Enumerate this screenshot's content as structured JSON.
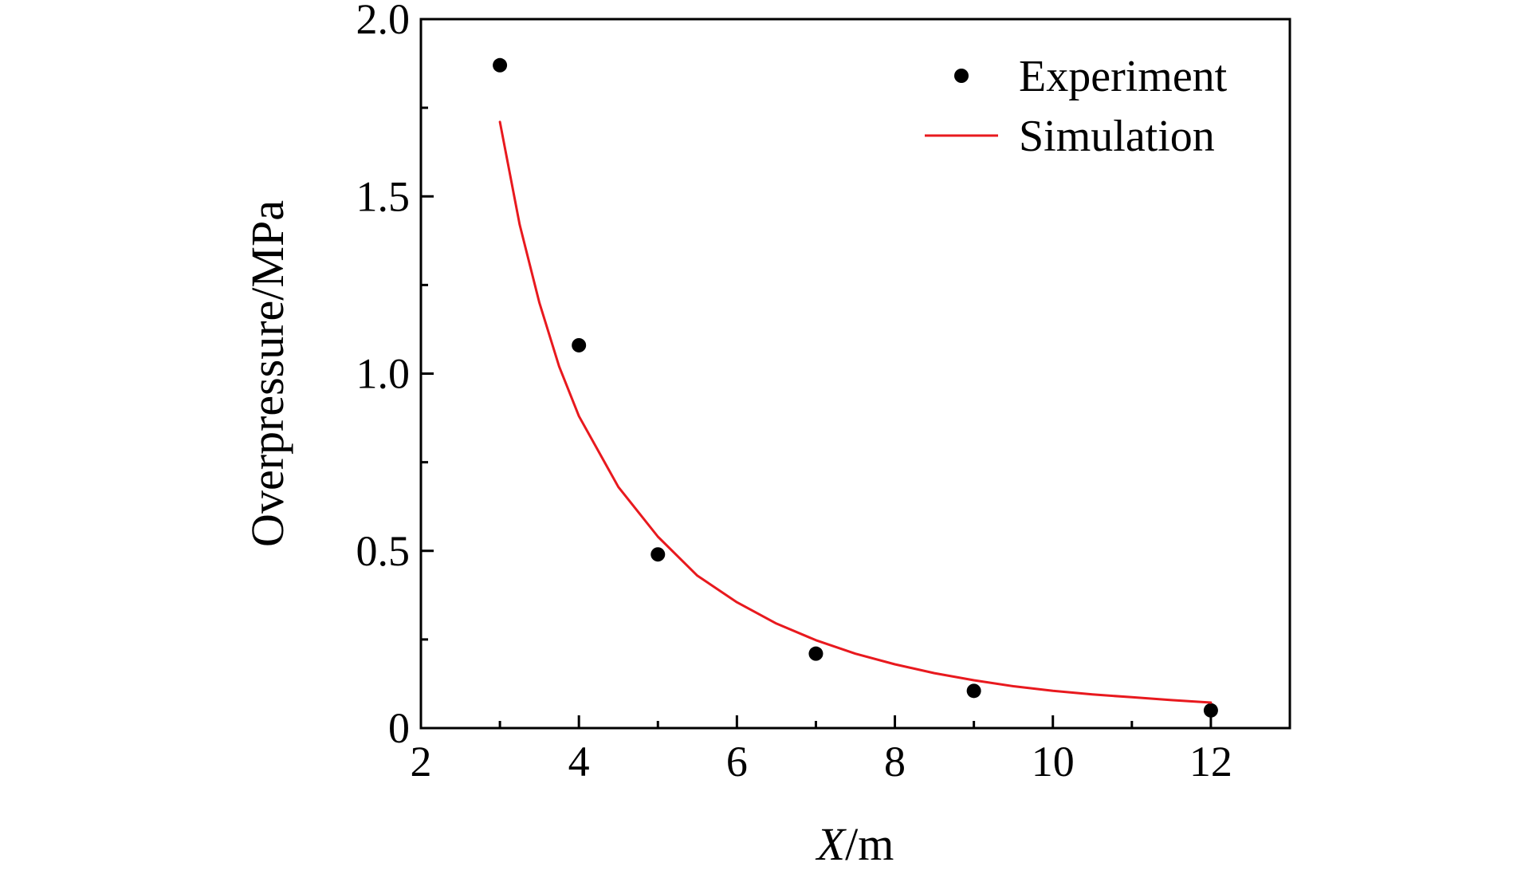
{
  "chart_data": {
    "type": "scatter",
    "title": "",
    "xlabel_italic": "X",
    "xlabel_unit": "/m",
    "ylabel": "Overpressure/MPa",
    "xlim": [
      2,
      13
    ],
    "ylim": [
      0,
      2.0
    ],
    "x_ticks": [
      2,
      4,
      6,
      8,
      10,
      12
    ],
    "x_tick_labels": [
      "2",
      "4",
      "6",
      "8",
      "10",
      "12"
    ],
    "y_ticks": [
      0,
      0.5,
      1.0,
      1.5,
      2.0
    ],
    "y_tick_labels": [
      "0",
      "0.5",
      "1.0",
      "1.5",
      "2.0"
    ],
    "legend_position": "top-right",
    "series": [
      {
        "name": "Experiment",
        "kind": "scatter",
        "color": "#000000",
        "x": [
          3,
          4,
          5,
          7,
          9,
          12
        ],
        "y": [
          1.87,
          1.08,
          0.49,
          0.21,
          0.105,
          0.05
        ]
      },
      {
        "name": "Simulation",
        "kind": "line",
        "color": "#e8191e",
        "x": [
          3,
          3.25,
          3.5,
          3.75,
          4,
          4.5,
          5,
          5.5,
          6,
          6.5,
          7,
          7.5,
          8,
          8.5,
          9,
          9.5,
          10,
          10.5,
          11,
          11.5,
          12
        ],
        "y": [
          1.71,
          1.42,
          1.2,
          1.02,
          0.88,
          0.68,
          0.54,
          0.43,
          0.355,
          0.295,
          0.248,
          0.21,
          0.18,
          0.155,
          0.135,
          0.118,
          0.105,
          0.095,
          0.087,
          0.079,
          0.072
        ]
      }
    ]
  }
}
